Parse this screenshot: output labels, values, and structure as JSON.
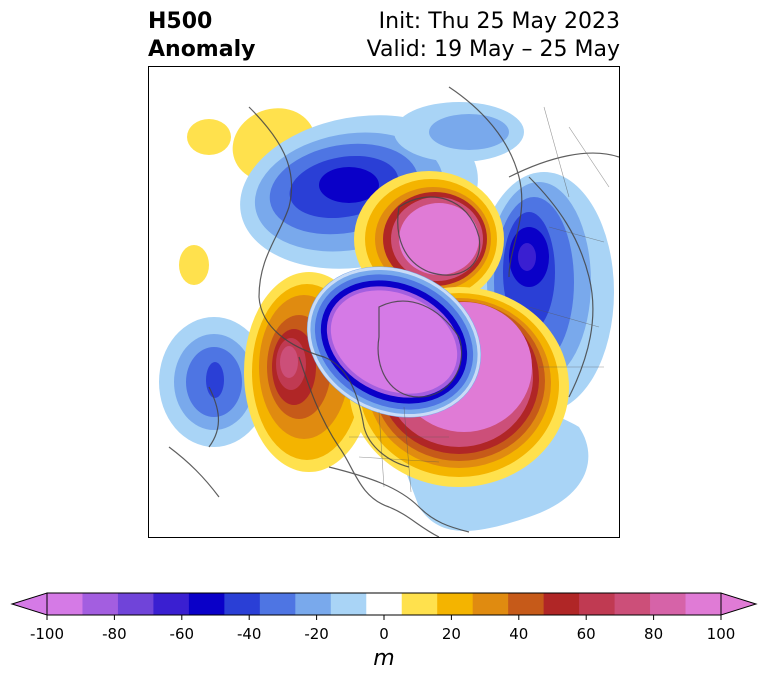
{
  "title": {
    "left_line1": "H500",
    "left_line2": "Anomaly",
    "right_line1": "Init: Thu 25 May 2023",
    "right_line2": "Valid: 19 May – 25 May"
  },
  "colorbar": {
    "min": -100,
    "max": 100,
    "step": 10,
    "tick_labels": [
      "-100",
      "-80",
      "-60",
      "-40",
      "-20",
      "0",
      "20",
      "40",
      "60",
      "80",
      "100"
    ],
    "unit": "m",
    "extend": "both",
    "colors": [
      "#d57ae6",
      "#a35ee0",
      "#7044d9",
      "#3a1fd1",
      "#0a00c8",
      "#2a3fd6",
      "#4e75e3",
      "#79a9ec",
      "#a9d4f6",
      "#ffffff",
      "#ffe14d",
      "#f4b400",
      "#e08b10",
      "#c65a19",
      "#b02626",
      "#c03a52",
      "#cc4f79",
      "#d663a8",
      "#e07bd6"
    ],
    "under_color": "#d57ae6",
    "over_color": "#e07bd6"
  },
  "map": {
    "projection": "north-polar-stereographic",
    "anomaly_features": [
      {
        "name": "Arctic / Greenland-centered low",
        "sign": "negative",
        "min_value": -100
      },
      {
        "name": "Hudson Bay / Canadian Arctic high",
        "sign": "positive",
        "max_value": 100
      },
      {
        "name": "Northern Europe high",
        "sign": "positive",
        "max_value": 90
      },
      {
        "name": "Western Siberia low",
        "sign": "negative",
        "min_value": -60
      },
      {
        "name": "Gulf of Alaska / NE Pacific high",
        "sign": "positive",
        "max_value": 70
      },
      {
        "name": "North Pacific low",
        "sign": "negative",
        "min_value": -50
      },
      {
        "name": "Eastern Siberia low",
        "sign": "negative",
        "min_value": -50
      }
    ]
  }
}
